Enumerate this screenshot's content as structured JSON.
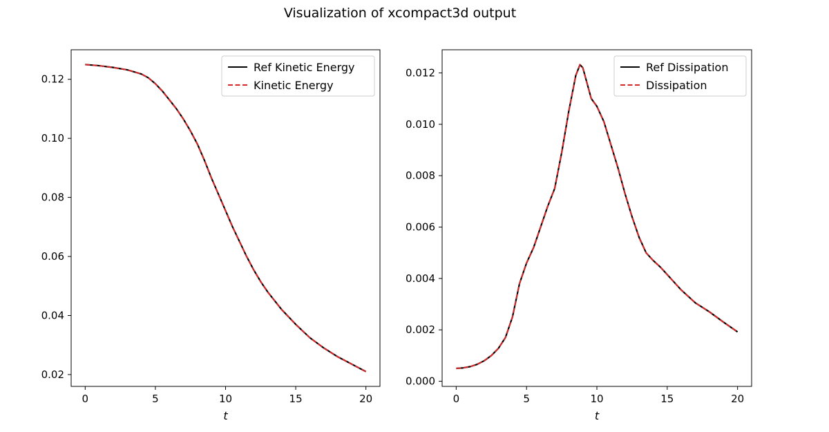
{
  "figure": {
    "title": "Visualization of xcompact3d output"
  },
  "chart_data": [
    {
      "type": "line",
      "xlabel": "t",
      "ylabel": "",
      "xlim": [
        -1,
        21
      ],
      "ylim": [
        0.016,
        0.13
      ],
      "xticks": [
        0,
        5,
        10,
        15,
        20
      ],
      "xtick_labels": [
        "0",
        "5",
        "10",
        "15",
        "20"
      ],
      "yticks": [
        0.02,
        0.04,
        0.06,
        0.08,
        0.1,
        0.12
      ],
      "ytick_labels": [
        "0.02",
        "0.04",
        "0.06",
        "0.08",
        "0.10",
        "0.12"
      ],
      "grid": false,
      "legend_position": "top-right",
      "series": [
        {
          "name": "Ref Kinetic Energy",
          "color": "#000000",
          "style": "solid",
          "x": [
            0,
            1,
            2,
            3,
            4,
            4.5,
            5,
            5.5,
            6,
            6.5,
            7,
            7.5,
            8,
            8.5,
            9,
            9.5,
            10,
            10.5,
            11,
            11.5,
            12,
            12.5,
            13,
            14,
            15,
            16,
            17,
            18,
            19,
            20
          ],
          "y": [
            0.125,
            0.1246,
            0.124,
            0.1232,
            0.1218,
            0.1205,
            0.1185,
            0.116,
            0.113,
            0.11,
            0.1065,
            0.1025,
            0.098,
            0.0925,
            0.0865,
            0.081,
            0.0755,
            0.07,
            0.065,
            0.06,
            0.0555,
            0.0515,
            0.048,
            0.042,
            0.037,
            0.0325,
            0.029,
            0.026,
            0.0235,
            0.021
          ]
        },
        {
          "name": "Kinetic Energy",
          "color": "#d62728",
          "style": "dashed",
          "x": [
            0,
            1,
            2,
            3,
            4,
            4.5,
            5,
            5.5,
            6,
            6.5,
            7,
            7.5,
            8,
            8.5,
            9,
            9.5,
            10,
            10.5,
            11,
            11.5,
            12,
            12.5,
            13,
            14,
            15,
            16,
            17,
            18,
            19,
            20
          ],
          "y": [
            0.125,
            0.1246,
            0.124,
            0.1232,
            0.1218,
            0.1205,
            0.1185,
            0.116,
            0.113,
            0.11,
            0.1065,
            0.1025,
            0.098,
            0.0925,
            0.0865,
            0.081,
            0.0755,
            0.07,
            0.065,
            0.06,
            0.0555,
            0.0515,
            0.048,
            0.042,
            0.037,
            0.0325,
            0.029,
            0.026,
            0.0235,
            0.021
          ]
        }
      ]
    },
    {
      "type": "line",
      "xlabel": "t",
      "ylabel": "",
      "xlim": [
        -1,
        21
      ],
      "ylim": [
        -0.0002,
        0.0129
      ],
      "xticks": [
        0,
        5,
        10,
        15,
        20
      ],
      "xtick_labels": [
        "0",
        "5",
        "10",
        "15",
        "20"
      ],
      "yticks": [
        0.0,
        0.002,
        0.004,
        0.006,
        0.008,
        0.01,
        0.012
      ],
      "ytick_labels": [
        "0.000",
        "0.002",
        "0.004",
        "0.006",
        "0.008",
        "0.010",
        "0.012"
      ],
      "grid": false,
      "legend_position": "top-right",
      "series": [
        {
          "name": "Ref Dissipation",
          "color": "#000000",
          "style": "solid",
          "x": [
            0,
            0.5,
            1,
            1.5,
            2,
            2.5,
            3,
            3.5,
            4,
            4.5,
            5,
            5.5,
            6,
            6.5,
            7,
            7.5,
            8,
            8.5,
            8.8,
            9,
            9.3,
            9.6,
            10,
            10.5,
            11,
            11.5,
            12,
            12.5,
            13,
            13.5,
            14,
            14.5,
            15,
            15.5,
            16,
            17,
            18,
            19,
            20
          ],
          "y": [
            0.0005,
            0.00052,
            0.00057,
            0.00066,
            0.0008,
            0.001,
            0.00128,
            0.0017,
            0.0025,
            0.0038,
            0.0046,
            0.0052,
            0.006,
            0.0068,
            0.0075,
            0.0089,
            0.0105,
            0.0119,
            0.01232,
            0.0122,
            0.0116,
            0.011,
            0.0107,
            0.0101,
            0.0092,
            0.0083,
            0.0073,
            0.0064,
            0.0056,
            0.005,
            0.0047,
            0.00445,
            0.00415,
            0.00385,
            0.00355,
            0.00305,
            0.0027,
            0.0023,
            0.00192
          ]
        },
        {
          "name": "Dissipation",
          "color": "#d62728",
          "style": "dashed",
          "x": [
            0,
            0.5,
            1,
            1.5,
            2,
            2.5,
            3,
            3.5,
            4,
            4.5,
            5,
            5.5,
            6,
            6.5,
            7,
            7.5,
            8,
            8.5,
            8.8,
            9,
            9.3,
            9.6,
            10,
            10.5,
            11,
            11.5,
            12,
            12.5,
            13,
            13.5,
            14,
            14.5,
            15,
            15.5,
            16,
            17,
            18,
            19,
            20
          ],
          "y": [
            0.0005,
            0.00052,
            0.00057,
            0.00066,
            0.0008,
            0.001,
            0.00128,
            0.0017,
            0.0025,
            0.0038,
            0.0046,
            0.0052,
            0.006,
            0.0068,
            0.0075,
            0.0089,
            0.0105,
            0.0119,
            0.01232,
            0.0122,
            0.0116,
            0.011,
            0.0107,
            0.0101,
            0.0092,
            0.0083,
            0.0073,
            0.0064,
            0.0056,
            0.005,
            0.0047,
            0.00445,
            0.00415,
            0.00385,
            0.00355,
            0.00305,
            0.0027,
            0.0023,
            0.00192
          ]
        }
      ]
    }
  ]
}
